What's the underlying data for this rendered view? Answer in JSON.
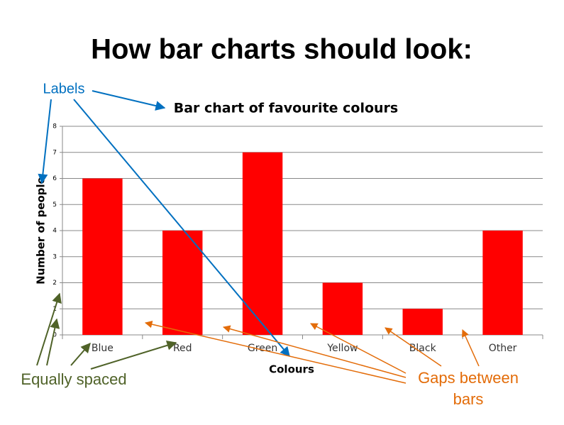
{
  "heading": "How bar charts should look:",
  "chart_data": {
    "type": "bar",
    "title": "Bar chart of favourite colours",
    "x_label": "Colours",
    "y_label": "Number of people",
    "categories": [
      "Blue",
      "Red",
      "Green",
      "Yellow",
      "Black",
      "Other"
    ],
    "values": [
      6,
      4,
      7,
      2,
      1,
      4
    ],
    "color": "#ff0000",
    "ylim": [
      0,
      8
    ],
    "yticks": [
      0,
      1,
      2,
      3,
      4,
      5,
      6,
      7,
      8
    ],
    "grid": true,
    "annotations": [
      "Labels",
      "Equally spaced",
      "Gaps between bars"
    ]
  }
}
